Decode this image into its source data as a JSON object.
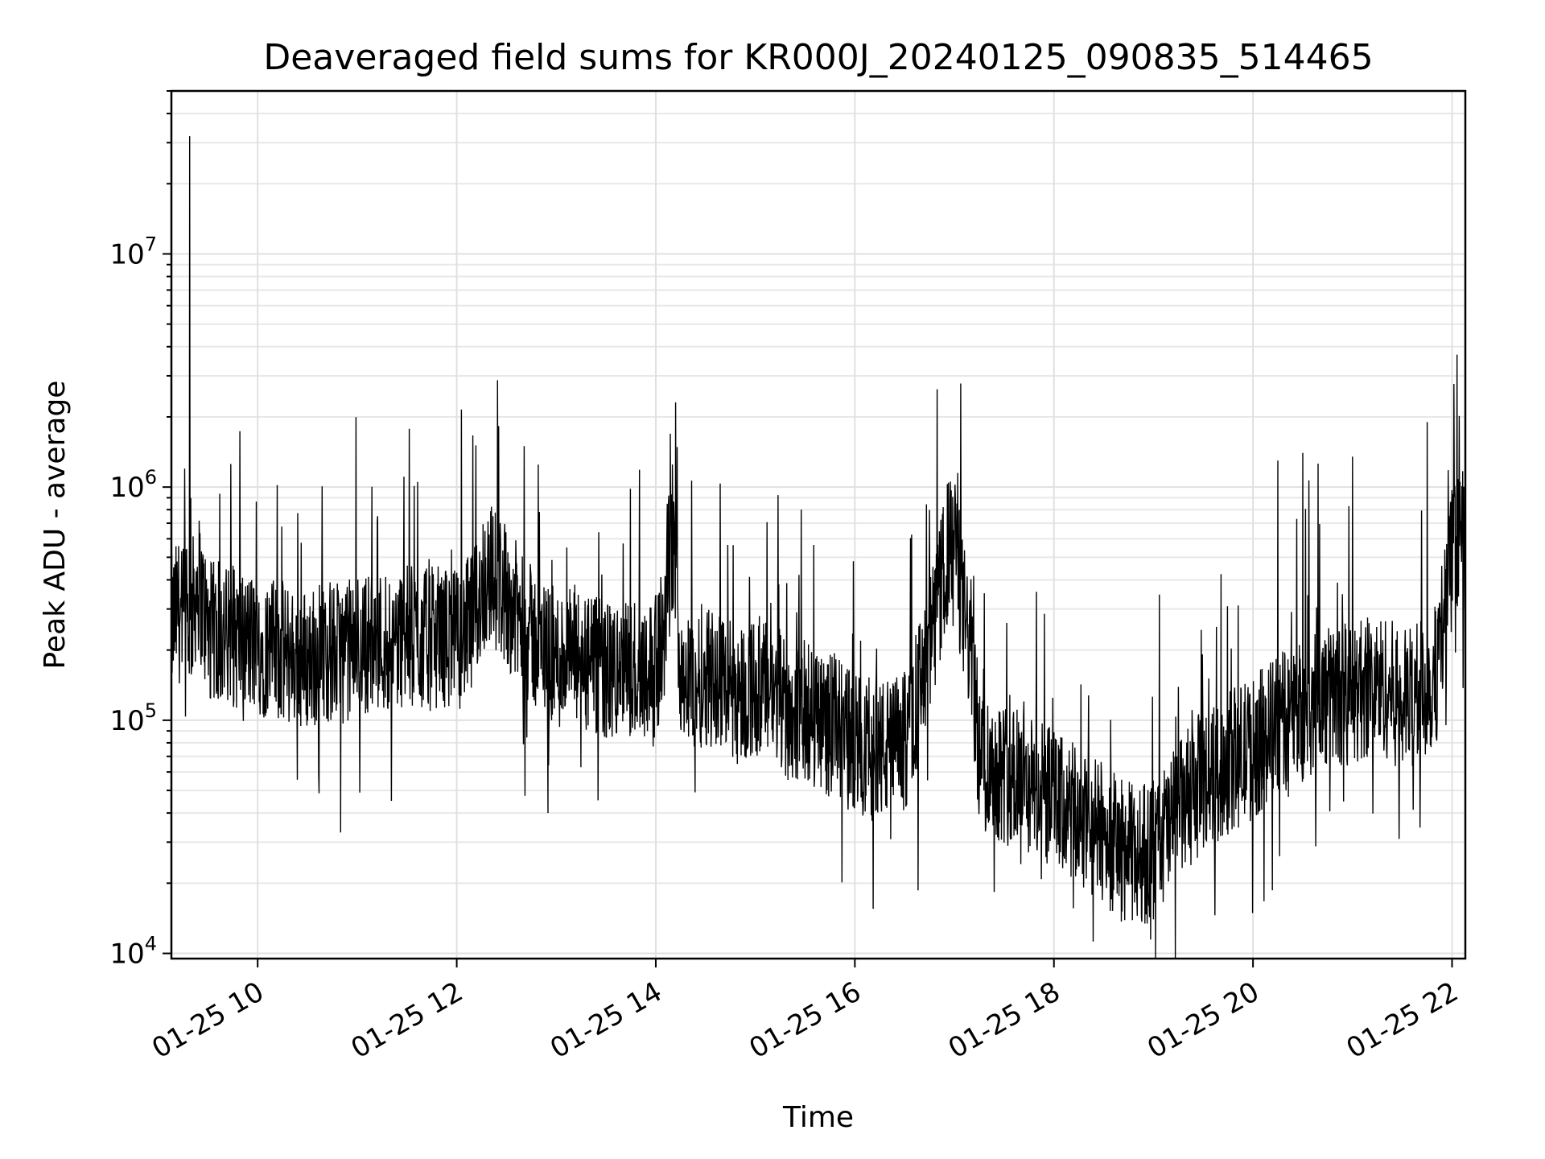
{
  "chart_data": {
    "type": "line",
    "title": "Deaveraged field sums for KR000J_20240125_090835_514465",
    "xlabel": "Time",
    "ylabel": "Peak ADU - average",
    "yscale": "log",
    "ylim": [
      9500,
      50000000
    ],
    "xlim": [
      "01-25 09:08",
      "01-25 22:08"
    ],
    "x_ticks": [
      "01-25 10",
      "01-25 12",
      "01-25 14",
      "01-25 16",
      "01-25 18",
      "01-25 20",
      "01-25 22"
    ],
    "y_ticks": [
      {
        "value": 10000,
        "base": "10",
        "exp": "4"
      },
      {
        "value": 100000,
        "base": "10",
        "exp": "5"
      },
      {
        "value": 1000000,
        "base": "10",
        "exp": "6"
      },
      {
        "value": 10000000,
        "base": "10",
        "exp": "7"
      }
    ],
    "grid": true,
    "line_color": "#000000",
    "series": [
      {
        "x": [
          "01-25 09:08",
          "01-25 09:12",
          "01-25 09:16",
          "01-25 09:20",
          "01-25 09:24",
          "01-25 09:30",
          "01-25 09:40",
          "01-25 09:50",
          "01-25 10:00",
          "01-25 10:10",
          "01-25 10:20",
          "01-25 10:30",
          "01-25 10:40",
          "01-25 10:50",
          "01-25 11:00",
          "01-25 11:10",
          "01-25 11:20",
          "01-25 11:30",
          "01-25 11:40",
          "01-25 11:50",
          "01-25 12:00",
          "01-25 12:10",
          "01-25 12:15",
          "01-25 12:20",
          "01-25 12:30",
          "01-25 12:40",
          "01-25 12:50",
          "01-25 13:00",
          "01-25 13:10",
          "01-25 13:20",
          "01-25 13:30",
          "01-25 13:40",
          "01-25 13:50",
          "01-25 14:00",
          "01-25 14:05",
          "01-25 14:08",
          "01-25 14:12",
          "01-25 14:15",
          "01-25 14:20",
          "01-25 14:30",
          "01-25 14:40",
          "01-25 14:50",
          "01-25 15:00",
          "01-25 15:10",
          "01-25 15:15",
          "01-25 15:20",
          "01-25 15:30",
          "01-25 15:40",
          "01-25 15:50",
          "01-25 16:00",
          "01-25 16:10",
          "01-25 16:20",
          "01-25 16:30",
          "01-25 16:40",
          "01-25 16:45",
          "01-25 16:50",
          "01-25 16:55",
          "01-25 17:00",
          "01-25 17:05",
          "01-25 17:10",
          "01-25 17:15",
          "01-25 17:20",
          "01-25 17:30",
          "01-25 17:40",
          "01-25 17:50",
          "01-25 18:00",
          "01-25 18:10",
          "01-25 18:20",
          "01-25 18:30",
          "01-25 18:40",
          "01-25 18:50",
          "01-25 19:00",
          "01-25 19:10",
          "01-25 19:20",
          "01-25 19:30",
          "01-25 19:40",
          "01-25 19:50",
          "01-25 20:00",
          "01-25 20:10",
          "01-25 20:20",
          "01-25 20:30",
          "01-25 20:40",
          "01-25 20:50",
          "01-25 21:00",
          "01-25 21:10",
          "01-25 21:20",
          "01-25 21:30",
          "01-25 21:40",
          "01-25 21:50",
          "01-25 22:00",
          "01-25 22:08"
        ],
        "y_center": [
          250000,
          300000,
          260000,
          280000,
          400000,
          240000,
          230000,
          220000,
          210000,
          200000,
          190000,
          180000,
          200000,
          190000,
          210000,
          220000,
          220000,
          230000,
          220000,
          230000,
          220000,
          260000,
          380000,
          430000,
          350000,
          250000,
          210000,
          180000,
          190000,
          170000,
          160000,
          160000,
          170000,
          170000,
          230000,
          500000,
          420000,
          180000,
          140000,
          160000,
          150000,
          130000,
          140000,
          130000,
          120000,
          110000,
          110000,
          100000,
          90000,
          80000,
          75000,
          75000,
          80000,
          140000,
          200000,
          300000,
          500000,
          600000,
          300000,
          200000,
          70000,
          65000,
          60000,
          55000,
          50000,
          45000,
          40000,
          35000,
          33000,
          28000,
          26000,
          28000,
          35000,
          45000,
          55000,
          60000,
          70000,
          75000,
          90000,
          100000,
          110000,
          120000,
          130000,
          130000,
          140000,
          140000,
          120000,
          130000,
          150000,
          500000,
          600000
        ]
      }
    ],
    "spikes": [
      {
        "x": "01-25 09:19",
        "y": 32000000
      },
      {
        "x": "01-25 09:16",
        "y": 1200000
      },
      {
        "x": "01-25 14:10",
        "y": 1250000
      },
      {
        "x": "01-25 17:02",
        "y": 1150000
      },
      {
        "x": "01-25 20:15",
        "y": 1300000
      },
      {
        "x": "01-25 20:30",
        "y": 1400000
      },
      {
        "x": "01-25 21:00",
        "y": 1350000
      },
      {
        "x": "01-25 21:45",
        "y": 1900000
      },
      {
        "x": "01-25 22:03",
        "y": 3700000
      },
      {
        "x": "01-25 10:50",
        "y": 33000
      },
      {
        "x": "01-25 12:55",
        "y": 40000
      },
      {
        "x": "01-25 19:00",
        "y": 14000
      }
    ]
  }
}
